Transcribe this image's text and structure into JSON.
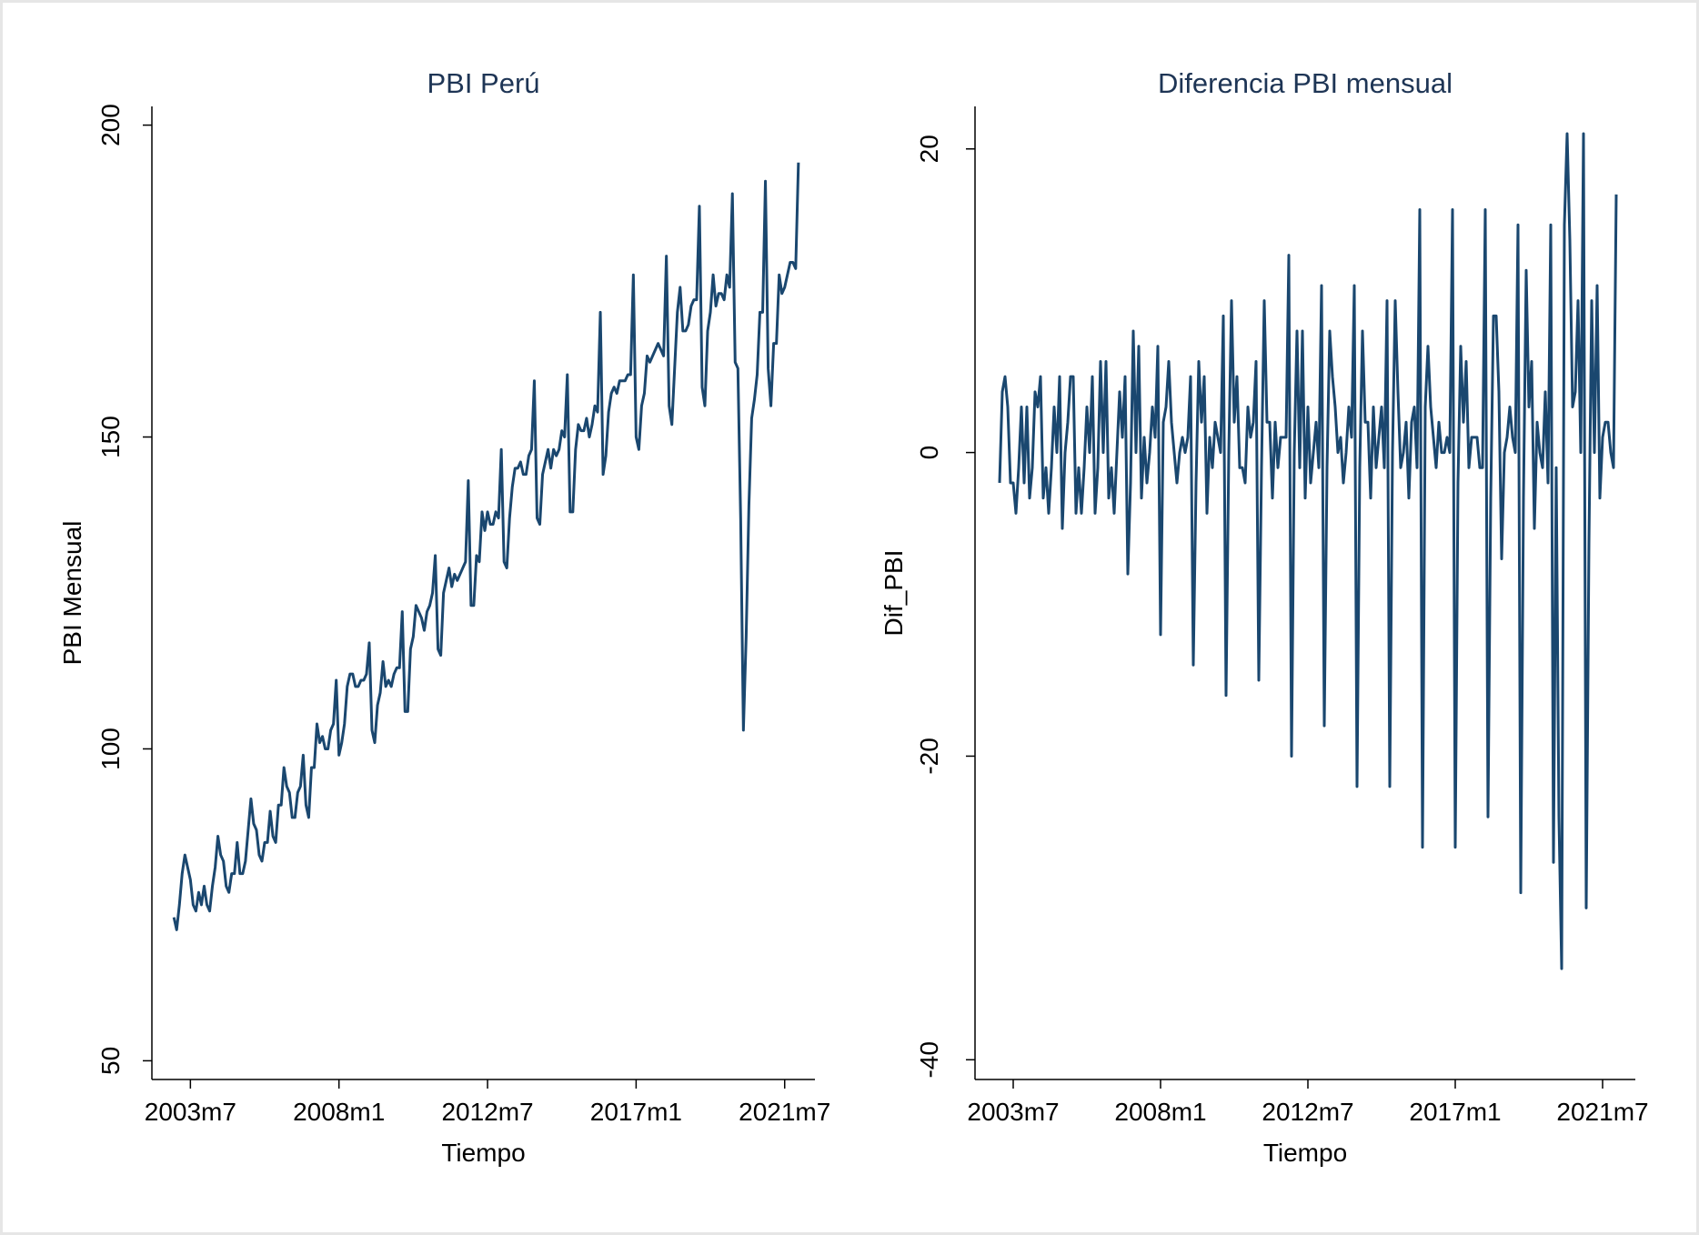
{
  "chart_data": [
    {
      "type": "line",
      "title": "PBI Perú",
      "x_label": "Tiempo",
      "y_label": "PBI Mensual",
      "color": "#1a476f",
      "xlim": [
        508,
        749
      ],
      "ylim": [
        47,
        203
      ],
      "xticks": [
        {
          "value": 522,
          "label": "2003m7"
        },
        {
          "value": 576,
          "label": "2008m1"
        },
        {
          "value": 630,
          "label": "2012m7"
        },
        {
          "value": 684,
          "label": "2017m1"
        },
        {
          "value": 738,
          "label": "2021m7"
        }
      ],
      "yticks": [
        50,
        100,
        150,
        200
      ],
      "x": [
        516,
        517,
        518,
        519,
        520,
        521,
        522,
        523,
        524,
        525,
        526,
        527,
        528,
        529,
        530,
        531,
        532,
        533,
        534,
        535,
        536,
        537,
        538,
        539,
        540,
        541,
        542,
        543,
        544,
        545,
        546,
        547,
        548,
        549,
        550,
        551,
        552,
        553,
        554,
        555,
        556,
        557,
        558,
        559,
        560,
        561,
        562,
        563,
        564,
        565,
        566,
        567,
        568,
        569,
        570,
        571,
        572,
        573,
        574,
        575,
        576,
        577,
        578,
        579,
        580,
        581,
        582,
        583,
        584,
        585,
        586,
        587,
        588,
        589,
        590,
        591,
        592,
        593,
        594,
        595,
        596,
        597,
        598,
        599,
        600,
        601,
        602,
        603,
        604,
        605,
        606,
        607,
        608,
        609,
        610,
        611,
        612,
        613,
        614,
        615,
        616,
        617,
        618,
        619,
        620,
        621,
        622,
        623,
        624,
        625,
        626,
        627,
        628,
        629,
        630,
        631,
        632,
        633,
        634,
        635,
        636,
        637,
        638,
        639,
        640,
        641,
        642,
        643,
        644,
        645,
        646,
        647,
        648,
        649,
        650,
        651,
        652,
        653,
        654,
        655,
        656,
        657,
        658,
        659,
        660,
        661,
        662,
        663,
        664,
        665,
        666,
        667,
        668,
        669,
        670,
        671,
        672,
        673,
        674,
        675,
        676,
        677,
        678,
        679,
        680,
        681,
        682,
        683,
        684,
        685,
        686,
        687,
        688,
        689,
        690,
        691,
        692,
        693,
        694,
        695,
        696,
        697,
        698,
        699,
        700,
        701,
        702,
        703,
        704,
        705,
        706,
        707,
        708,
        709,
        710,
        711,
        712,
        713,
        714,
        715,
        716,
        717,
        718,
        719,
        720,
        721,
        722,
        723,
        724,
        725,
        726,
        727,
        728,
        729,
        730,
        731,
        732,
        733,
        734,
        735,
        736,
        737,
        738,
        739,
        740,
        741,
        742,
        743
      ],
      "values": [
        73,
        71,
        75,
        80,
        83,
        81,
        79,
        75,
        74,
        77,
        75,
        78,
        75,
        74,
        78,
        81,
        86,
        83,
        82,
        78,
        77,
        80,
        80,
        85,
        80,
        80,
        82,
        87,
        92,
        88,
        87,
        83,
        82,
        85,
        85,
        90,
        86,
        85,
        91,
        91,
        97,
        94,
        93,
        89,
        89,
        93,
        94,
        99,
        91,
        89,
        97,
        97,
        104,
        101,
        102,
        100,
        100,
        103,
        104,
        111,
        99,
        101,
        104,
        110,
        112,
        112,
        110,
        110,
        111,
        111,
        112,
        117,
        103,
        101,
        107,
        109,
        114,
        110,
        111,
        110,
        112,
        113,
        113,
        122,
        106,
        106,
        116,
        118,
        123,
        122,
        121,
        119,
        122,
        123,
        125,
        131,
        116,
        115,
        125,
        127,
        129,
        126,
        128,
        127,
        128,
        129,
        130,
        143,
        123,
        123,
        131,
        130,
        138,
        135,
        138,
        136,
        136,
        138,
        137,
        148,
        130,
        129,
        137,
        142,
        145,
        145,
        146,
        144,
        144,
        147,
        148,
        159,
        137,
        136,
        144,
        146,
        148,
        145,
        148,
        147,
        148,
        151,
        150,
        160,
        138,
        138,
        148,
        152,
        151,
        151,
        153,
        150,
        152,
        155,
        154,
        170,
        144,
        147,
        154,
        157,
        158,
        157,
        159,
        159,
        159,
        160,
        160,
        176,
        150,
        148,
        155,
        157,
        163,
        162,
        163,
        164,
        165,
        164,
        163,
        179,
        155,
        152,
        161,
        170,
        174,
        167,
        167,
        168,
        171,
        172,
        172,
        187,
        158,
        155,
        167,
        170,
        176,
        171,
        173,
        173,
        172,
        176,
        174,
        189,
        162,
        161,
        137,
        103,
        118,
        139,
        153,
        156,
        160,
        170,
        170,
        191,
        161,
        155,
        165,
        165,
        176,
        173,
        174,
        176,
        178,
        178,
        177,
        194
      ]
    },
    {
      "type": "line",
      "title": "Diferencia PBI mensual",
      "x_label": "Tiempo",
      "y_label": "Dif_PBI",
      "color": "#1a476f",
      "xlim": [
        508,
        750
      ],
      "ylim": [
        -41.3,
        22.8
      ],
      "xticks": [
        {
          "value": 522,
          "label": "2003m7"
        },
        {
          "value": 576,
          "label": "2008m1"
        },
        {
          "value": 630,
          "label": "2012m7"
        },
        {
          "value": 684,
          "label": "2017m1"
        },
        {
          "value": 738,
          "label": "2021m7"
        }
      ],
      "yticks": [
        -40,
        -20,
        0,
        20
      ],
      "x": [
        517,
        518,
        519,
        520,
        521,
        522,
        523,
        524,
        525,
        526,
        527,
        528,
        529,
        530,
        531,
        532,
        533,
        534,
        535,
        536,
        537,
        538,
        539,
        540,
        541,
        542,
        543,
        544,
        545,
        546,
        547,
        548,
        549,
        550,
        551,
        552,
        553,
        554,
        555,
        556,
        557,
        558,
        559,
        560,
        561,
        562,
        563,
        564,
        565,
        566,
        567,
        568,
        569,
        570,
        571,
        572,
        573,
        574,
        575,
        576,
        577,
        578,
        579,
        580,
        581,
        582,
        583,
        584,
        585,
        586,
        587,
        588,
        589,
        590,
        591,
        592,
        593,
        594,
        595,
        596,
        597,
        598,
        599,
        600,
        601,
        602,
        603,
        604,
        605,
        606,
        607,
        608,
        609,
        610,
        611,
        612,
        613,
        614,
        615,
        616,
        617,
        618,
        619,
        620,
        621,
        622,
        623,
        624,
        625,
        626,
        627,
        628,
        629,
        630,
        631,
        632,
        633,
        634,
        635,
        636,
        637,
        638,
        639,
        640,
        641,
        642,
        643,
        644,
        645,
        646,
        647,
        648,
        649,
        650,
        651,
        652,
        653,
        654,
        655,
        656,
        657,
        658,
        659,
        660,
        661,
        662,
        663,
        664,
        665,
        666,
        667,
        668,
        669,
        670,
        671,
        672,
        673,
        674,
        675,
        676,
        677,
        678,
        679,
        680,
        681,
        682,
        683,
        684,
        685,
        686,
        687,
        688,
        689,
        690,
        691,
        692,
        693,
        694,
        695,
        696,
        697,
        698,
        699,
        700,
        701,
        702,
        703,
        704,
        705,
        706,
        707,
        708,
        709,
        710,
        711,
        712,
        713,
        714,
        715,
        716,
        717,
        718,
        719,
        720,
        721,
        722,
        723,
        724,
        725,
        726,
        727,
        728,
        729,
        730,
        731,
        732,
        733,
        734,
        735,
        736,
        737,
        738,
        739,
        740,
        741,
        742,
        743
      ],
      "values": [
        -2,
        4,
        5,
        3,
        -2,
        -2,
        -4,
        -1,
        3,
        -2,
        3,
        -3,
        -1,
        4,
        3,
        5,
        -3,
        -1,
        -4,
        -1,
        3,
        0,
        5,
        -5,
        0,
        2,
        5,
        5,
        -4,
        -1,
        -4,
        -1,
        3,
        0,
        5,
        -4,
        -1,
        6,
        0,
        6,
        -3,
        -1,
        -4,
        0,
        4,
        1,
        5,
        -8,
        -2,
        8,
        0,
        7,
        -3,
        1,
        -2,
        0,
        3,
        1,
        7,
        -12,
        2,
        3,
        6,
        2,
        0,
        -2,
        0,
        1,
        0,
        1,
        5,
        -14,
        -2,
        6,
        2,
        5,
        -4,
        1,
        -1,
        2,
        1,
        0,
        9,
        -16,
        0,
        10,
        2,
        5,
        -1,
        -1,
        -2,
        3,
        1,
        2,
        6,
        -15,
        -1,
        10,
        2,
        2,
        -3,
        2,
        -1,
        1,
        1,
        1,
        13,
        -20,
        0,
        8,
        -1,
        8,
        -3,
        3,
        -2,
        0,
        2,
        -1,
        11,
        -18,
        -1,
        8,
        5,
        3,
        0,
        1,
        -2,
        0,
        3,
        1,
        11,
        -22,
        -1,
        8,
        2,
        2,
        -3,
        3,
        -1,
        1,
        3,
        -1,
        10,
        -22,
        0,
        10,
        4,
        -1,
        0,
        2,
        -3,
        2,
        3,
        -1,
        16,
        -26,
        3,
        7,
        3,
        1,
        -1,
        2,
        0,
        0,
        1,
        0,
        16,
        -26,
        -2,
        7,
        2,
        6,
        -1,
        1,
        1,
        1,
        -1,
        -1,
        16,
        -24,
        -3,
        9,
        9,
        4,
        -7,
        0,
        1,
        3,
        1,
        0,
        15,
        -29,
        -3,
        12,
        3,
        6,
        -5,
        2,
        0,
        -1,
        4,
        -2,
        15,
        -27,
        -1,
        -24,
        -34,
        15,
        21,
        14,
        3,
        4,
        10,
        0,
        21,
        -30,
        -6,
        10,
        0,
        11,
        -3,
        1,
        2,
        2,
        0,
        -1,
        17
      ]
    }
  ]
}
